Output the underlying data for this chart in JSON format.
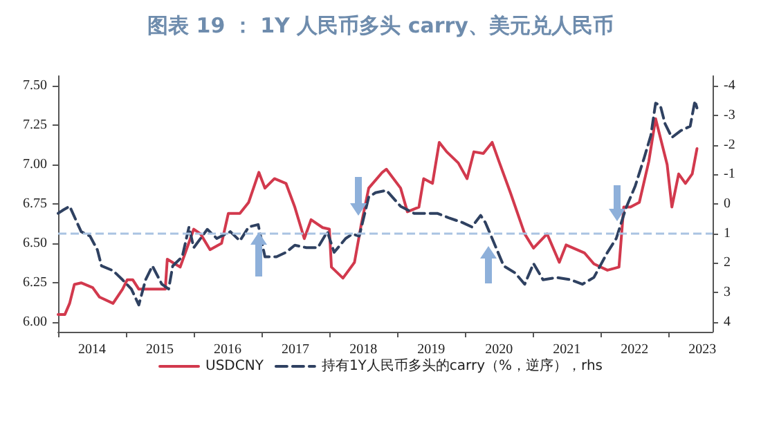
{
  "chart_data": {
    "type": "line",
    "title": "图表 19 ： 1Y 人民币多头 carry、美元兑人民币",
    "xlim": [
      2014,
      2023.65
    ],
    "xticks": [
      {
        "value": 2014,
        "label": null
      },
      {
        "value": 2014.5,
        "label": "2014"
      },
      {
        "value": 2015,
        "label": null
      },
      {
        "value": 2015.5,
        "label": "2015"
      },
      {
        "value": 2016,
        "label": null
      },
      {
        "value": 2016.5,
        "label": "2016"
      },
      {
        "value": 2017,
        "label": null
      },
      {
        "value": 2017.5,
        "label": "2017"
      },
      {
        "value": 2018,
        "label": null
      },
      {
        "value": 2018.5,
        "label": "2018"
      },
      {
        "value": 2019,
        "label": null
      },
      {
        "value": 2019.5,
        "label": "2019"
      },
      {
        "value": 2020,
        "label": null
      },
      {
        "value": 2020.5,
        "label": "2020"
      },
      {
        "value": 2021,
        "label": null
      },
      {
        "value": 2021.5,
        "label": "2021"
      },
      {
        "value": 2022,
        "label": null
      },
      {
        "value": 2022.5,
        "label": "2022"
      },
      {
        "value": 2023,
        "label": null
      },
      {
        "value": 2023.5,
        "label": "2023"
      }
    ],
    "ylim": [
      5.94,
      7.56
    ],
    "yticks": [
      {
        "value": 6,
        "label": "6.00"
      },
      {
        "value": 6.25,
        "label": "6.25"
      },
      {
        "value": 6.5,
        "label": "6.50"
      },
      {
        "value": 6.75,
        "label": "6.75"
      },
      {
        "value": 7,
        "label": "7.00"
      },
      {
        "value": 7.25,
        "label": "7.25"
      },
      {
        "value": 7.5,
        "label": "7.50"
      }
    ],
    "y2lim": [
      4.33,
      -4.33
    ],
    "y2ticks": [
      -4,
      -3,
      -2,
      -1,
      0,
      1,
      2,
      3,
      4
    ],
    "grid": false,
    "legend": "bottom",
    "marker": "none",
    "ref_lines": [
      {
        "axis": "y2",
        "value": 1,
        "color": "#a9c3e2",
        "line_style": "dashed"
      }
    ],
    "series": [
      {
        "name": "USDCNY",
        "color": "#d2394d",
        "line_style": "solid",
        "x": [
          2014.0,
          2014.1,
          2014.17,
          2014.24,
          2014.34,
          2014.51,
          2014.61,
          2014.81,
          2014.95,
          2015.02,
          2015.1,
          2015.19,
          2015.4,
          2015.58,
          2015.61,
          2015.8,
          2016.0,
          2016.1,
          2016.24,
          2016.41,
          2016.51,
          2016.68,
          2016.81,
          2016.96,
          2017.05,
          2017.19,
          2017.36,
          2017.49,
          2017.63,
          2017.73,
          2017.9,
          2018.0,
          2018.03,
          2018.2,
          2018.37,
          2018.47,
          2018.58,
          2018.78,
          2018.84,
          2019.05,
          2019.15,
          2019.32,
          2019.39,
          2019.52,
          2019.62,
          2019.73,
          2019.9,
          2020.03,
          2020.13,
          2020.27,
          2020.4,
          2020.5,
          2020.67,
          2020.88,
          2021.01,
          2021.21,
          2021.39,
          2021.49,
          2021.76,
          2021.9,
          2022.1,
          2022.27,
          2022.34,
          2022.44,
          2022.57,
          2022.71,
          2022.81,
          2022.88,
          2022.98,
          2023.05,
          2023.15,
          2023.25,
          2023.35,
          2023.42
        ],
        "values": [
          6.05,
          6.05,
          6.12,
          6.24,
          6.25,
          6.22,
          6.16,
          6.12,
          6.21,
          6.27,
          6.27,
          6.21,
          6.21,
          6.21,
          6.4,
          6.35,
          6.59,
          6.56,
          6.46,
          6.5,
          6.69,
          6.69,
          6.76,
          6.95,
          6.85,
          6.91,
          6.88,
          6.73,
          6.53,
          6.65,
          6.6,
          6.59,
          6.35,
          6.28,
          6.38,
          6.62,
          6.85,
          6.95,
          6.97,
          6.85,
          6.7,
          6.73,
          6.91,
          6.88,
          7.14,
          7.08,
          7.01,
          6.91,
          7.08,
          7.07,
          7.14,
          7.02,
          6.82,
          6.56,
          6.47,
          6.56,
          6.38,
          6.49,
          6.44,
          6.37,
          6.33,
          6.35,
          6.73,
          6.73,
          6.76,
          7.02,
          7.29,
          7.17,
          7.0,
          6.73,
          6.94,
          6.88,
          6.94,
          7.1
        ]
      },
      {
        "name": "持有1Y人民币多头的carry（%，逆序），rhs",
        "color": "#2f4161",
        "axis": "y2",
        "line_style": "dashed",
        "x": [
          2014.0,
          2014.08,
          2014.17,
          2014.34,
          2014.47,
          2014.58,
          2014.64,
          2014.81,
          2014.95,
          2015.08,
          2015.19,
          2015.29,
          2015.39,
          2015.53,
          2015.63,
          2015.69,
          2015.83,
          2015.93,
          2016.0,
          2016.2,
          2016.34,
          2016.54,
          2016.68,
          2016.81,
          2016.95,
          2017.05,
          2017.22,
          2017.36,
          2017.49,
          2017.66,
          2017.83,
          2017.97,
          2018.07,
          2018.24,
          2018.34,
          2018.44,
          2018.58,
          2018.68,
          2018.84,
          2019.05,
          2019.25,
          2019.42,
          2019.59,
          2019.76,
          2019.96,
          2020.1,
          2020.23,
          2020.3,
          2020.4,
          2020.57,
          2020.74,
          2020.88,
          2021.01,
          2021.15,
          2021.35,
          2021.56,
          2021.73,
          2021.9,
          2022.1,
          2022.23,
          2022.37,
          2022.51,
          2022.64,
          2022.74,
          2022.81,
          2022.88,
          2022.95,
          2023.05,
          2023.18,
          2023.32,
          2023.39,
          2023.42
        ],
        "values": [
          0.32,
          0.2,
          0.08,
          0.94,
          1.09,
          1.56,
          2.1,
          2.26,
          2.57,
          2.88,
          3.42,
          2.57,
          2.1,
          2.72,
          2.88,
          2.1,
          1.79,
          0.78,
          1.48,
          0.86,
          1.17,
          0.94,
          1.25,
          0.78,
          0.7,
          1.79,
          1.79,
          1.64,
          1.4,
          1.48,
          1.48,
          0.94,
          1.64,
          1.17,
          1.02,
          1.09,
          -0.23,
          -0.38,
          -0.46,
          0.08,
          0.32,
          0.32,
          0.32,
          0.47,
          0.63,
          0.78,
          0.39,
          0.63,
          1.17,
          2.1,
          2.34,
          2.72,
          2.02,
          2.57,
          2.49,
          2.57,
          2.72,
          2.49,
          1.64,
          1.17,
          0.16,
          -0.61,
          -1.55,
          -2.32,
          -3.41,
          -3.33,
          -2.71,
          -2.25,
          -2.48,
          -2.63,
          -3.49,
          -3.25
        ]
      }
    ]
  }
}
